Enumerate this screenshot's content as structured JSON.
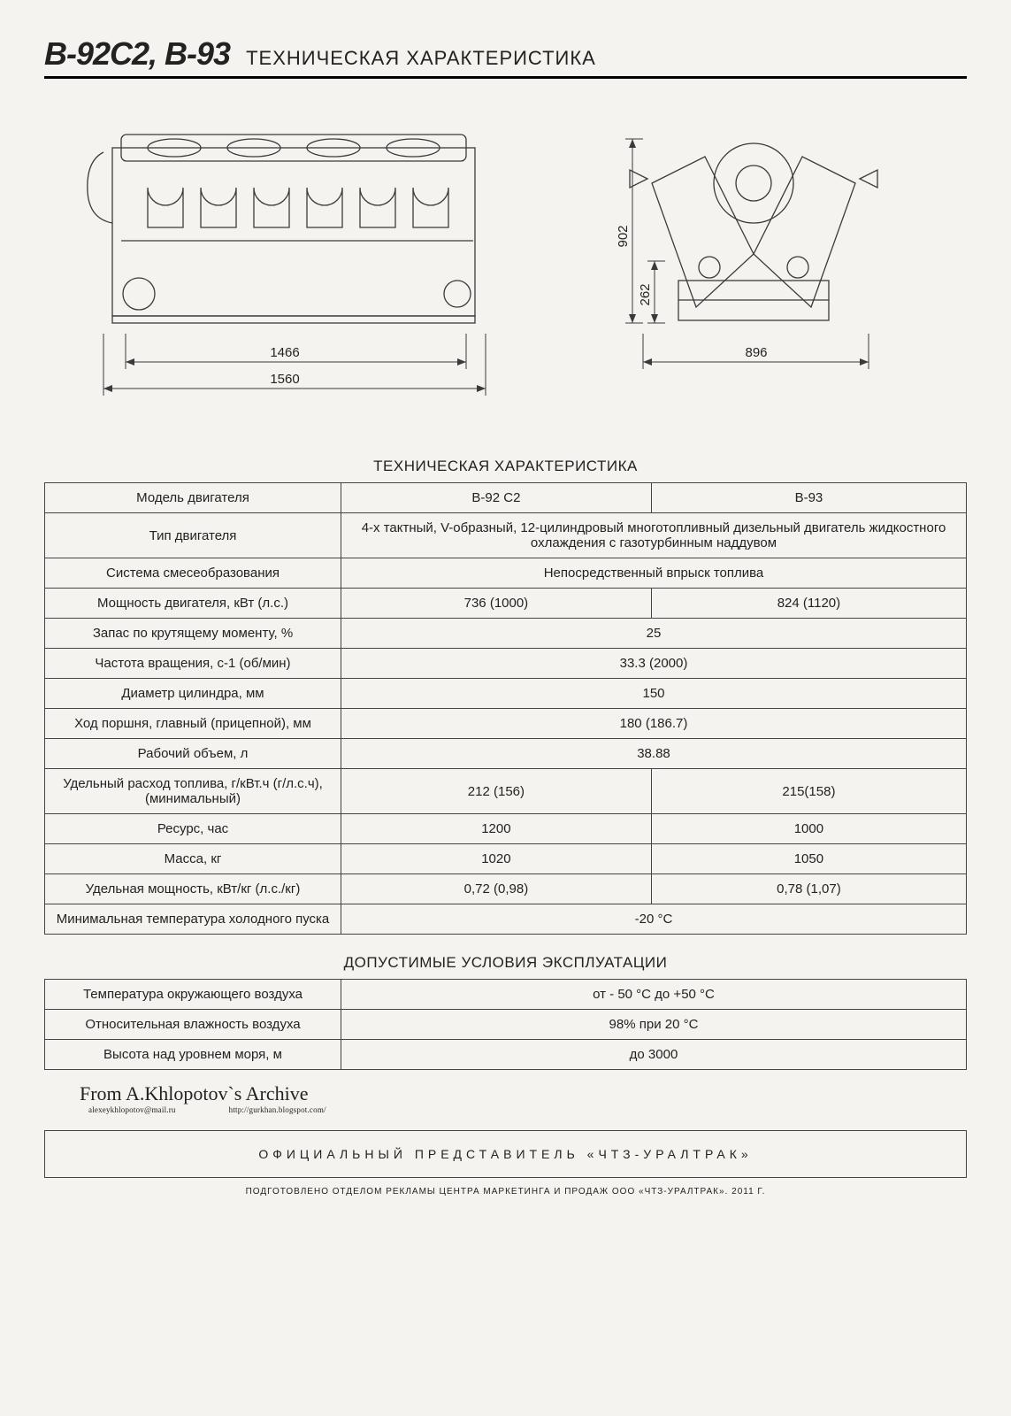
{
  "header": {
    "models": "В-92С2, В-93",
    "caption": "ТЕХНИЧЕСКАЯ ХАРАКТЕРИСТИКА"
  },
  "diagrams": {
    "side": {
      "dim_inner": "1466",
      "dim_outer": "1560"
    },
    "front": {
      "dim_height": "902",
      "dim_lower": "262",
      "dim_width": "896"
    }
  },
  "spec_table": {
    "title": "ТЕХНИЧЕСКАЯ ХАРАКТЕРИСТИКА",
    "rows": [
      {
        "label": "Модель двигателя",
        "v1": "В-92 С2",
        "v2": "В-93"
      },
      {
        "label": "Тип двигателя",
        "merged": "4-х тактный, V-образный, 12-цилиндровый многотопливный дизельный двигатель жидкостного охлаждения с газотурбинным наддувом"
      },
      {
        "label": "Система смесеобразования",
        "merged": "Непосредственный впрыск топлива"
      },
      {
        "label": "Мощность двигателя, кВт (л.с.)",
        "v1": "736 (1000)",
        "v2": "824 (1120)"
      },
      {
        "label": "Запас по крутящему моменту, %",
        "merged": "25"
      },
      {
        "label": "Частота вращения, с-1 (об/мин)",
        "merged": "33.3 (2000)"
      },
      {
        "label": "Диаметр цилиндра, мм",
        "merged": "150"
      },
      {
        "label": "Ход поршня, главный (прицепной), мм",
        "merged": "180 (186.7)"
      },
      {
        "label": "Рабочий объем, л",
        "merged": "38.88"
      },
      {
        "label": "Удельный расход топлива, г/кВт.ч (г/л.с.ч), (минимальный)",
        "v1": "212 (156)",
        "v2": "215(158)"
      },
      {
        "label": "Ресурс, час",
        "v1": "1200",
        "v2": "1000"
      },
      {
        "label": "Масса, кг",
        "v1": "1020",
        "v2": "1050"
      },
      {
        "label": "Удельная мощность, кВт/кг (л.с./кг)",
        "v1": "0,72 (0,98)",
        "v2": "0,78 (1,07)"
      },
      {
        "label": "Минимальная температура холодного пуска",
        "merged": "-20 °С"
      }
    ]
  },
  "conditions_table": {
    "title": "ДОПУСТИМЫЕ УСЛОВИЯ ЭКСПЛУАТАЦИИ",
    "rows": [
      {
        "label": "Температура окружающего воздуха",
        "merged": "от - 50 °С до +50 °С"
      },
      {
        "label": "Относительная влажность воздуха",
        "merged": "98% при 20 °С"
      },
      {
        "label": "Высота над уровнем моря, м",
        "merged": "до 3000"
      }
    ]
  },
  "archive": {
    "main": "From A.Khlopotov`s Archive",
    "email": "alexeykhlopotov@mail.ru",
    "url": "http://gurkhan.blogspot.com/"
  },
  "footer_box": "ОФИЦИАЛЬНЫЙ ПРЕДСТАВИТЕЛЬ «ЧТЗ-УРАЛТРАК»",
  "small_print": "ПОДГОТОВЛЕНО ОТДЕЛОМ РЕКЛАМЫ ЦЕНТРА МАРКЕТИНГА И ПРОДАЖ ООО «ЧТЗ-УРАЛТРАК». 2011 Г."
}
